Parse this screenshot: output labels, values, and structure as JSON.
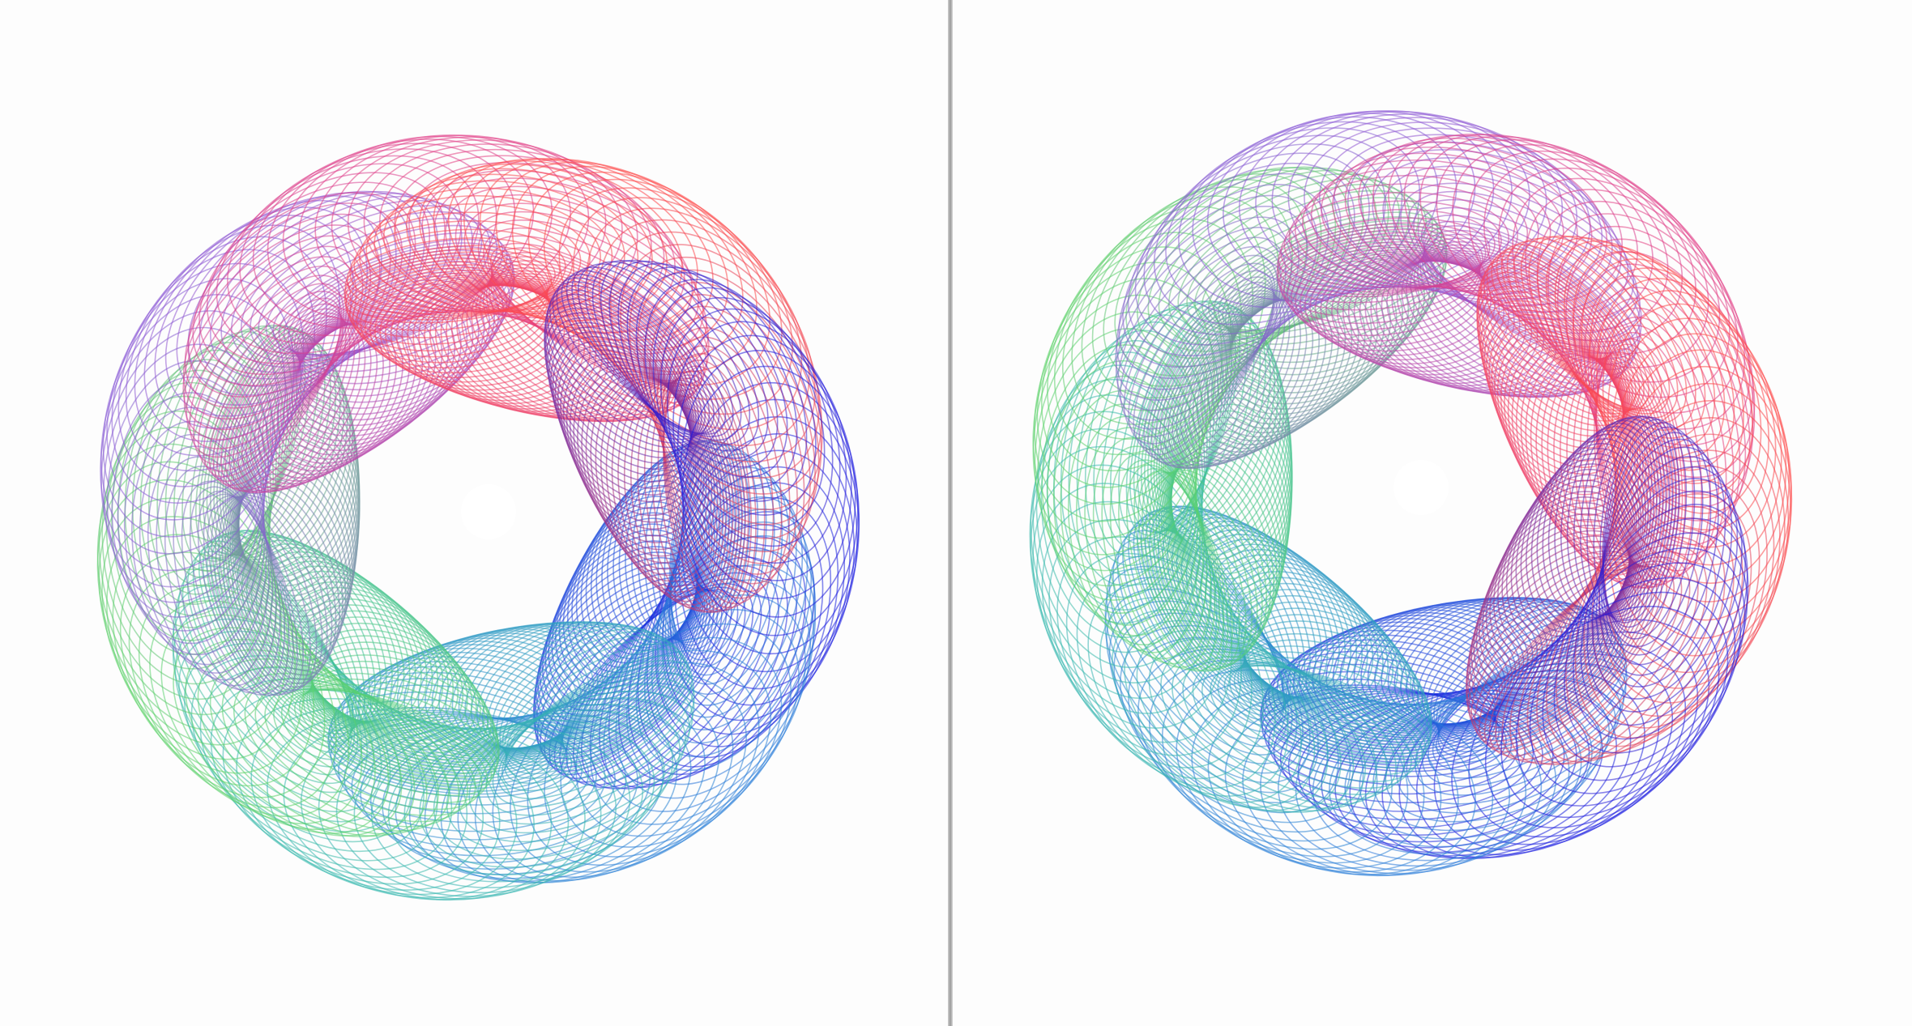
{
  "image": {
    "layout": "two-panel-side-by-side",
    "background": "#ffffff",
    "divider_color": "#a0a0a0"
  },
  "panels": [
    {
      "id": "left",
      "subject": "wireframe-toroidal-knot",
      "colors": [
        "#1a1ae0",
        "#2a7fd8",
        "#38b8b0",
        "#5ed36a",
        "#8a5ad8",
        "#e0408a",
        "#ff4a4a"
      ]
    },
    {
      "id": "right",
      "subject": "wireframe-toroidal-knot",
      "colors": [
        "#1a1ae0",
        "#2a7fd8",
        "#38b8b0",
        "#5ed36a",
        "#8a5ad8",
        "#e0408a",
        "#ff4a4a"
      ]
    }
  ]
}
